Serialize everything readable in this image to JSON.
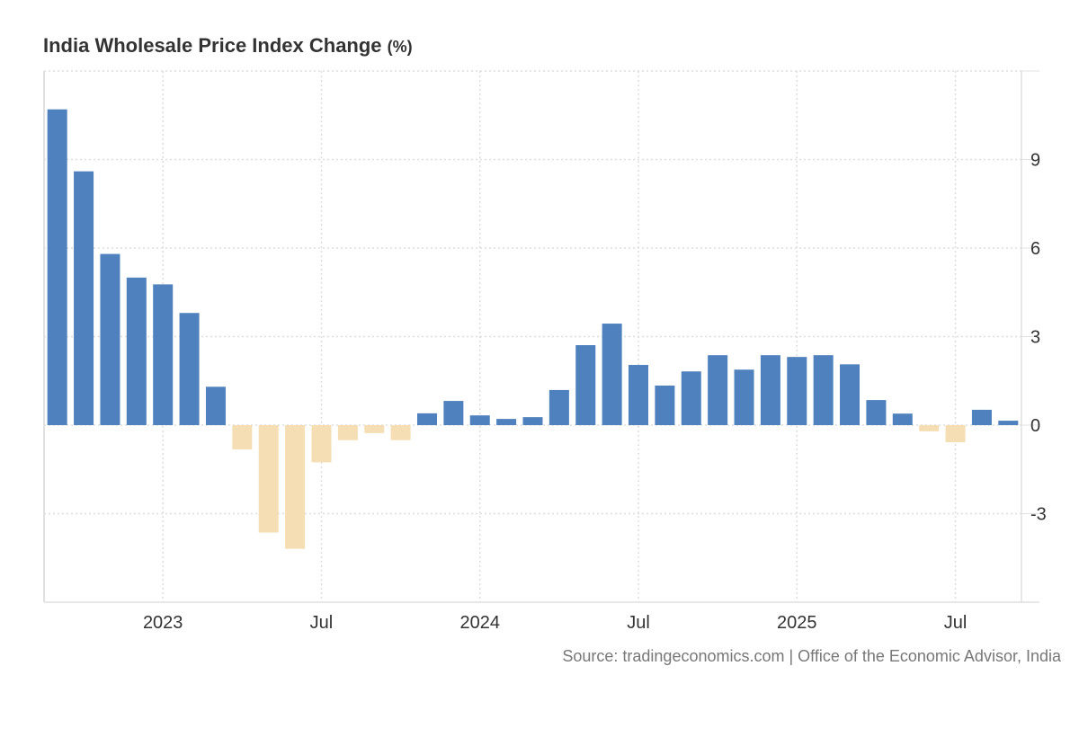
{
  "chart_data": {
    "type": "bar",
    "title": "India Wholesale Price Index Change",
    "title_unit": "(%)",
    "xlabel": "",
    "ylabel": "",
    "ylim": [
      -6,
      12
    ],
    "yticks": [
      -3,
      0,
      3,
      6,
      9
    ],
    "grid": true,
    "legend": "none",
    "y_axis_position": "right",
    "categories": [
      "2022-09",
      "2022-10",
      "2022-11",
      "2022-12",
      "2023-01",
      "2023-02",
      "2023-03",
      "2023-04",
      "2023-05",
      "2023-06",
      "2023-07",
      "2023-08",
      "2023-09",
      "2023-10",
      "2023-11",
      "2023-12",
      "2024-01",
      "2024-02",
      "2024-03",
      "2024-04",
      "2024-05",
      "2024-06",
      "2024-07",
      "2024-08",
      "2024-09",
      "2024-10",
      "2024-11",
      "2024-12",
      "2025-01",
      "2025-02",
      "2025-03",
      "2025-04",
      "2025-05",
      "2025-06",
      "2025-07",
      "2025-08",
      "2025-09"
    ],
    "values": [
      10.7,
      8.6,
      5.8,
      5.0,
      4.77,
      3.8,
      1.3,
      -0.82,
      -3.64,
      -4.19,
      -1.26,
      -0.51,
      -0.27,
      -0.51,
      0.4,
      0.82,
      0.33,
      0.21,
      0.27,
      1.19,
      2.71,
      3.44,
      2.04,
      1.34,
      1.82,
      2.37,
      1.88,
      2.37,
      2.31,
      2.37,
      2.06,
      0.85,
      0.39,
      -0.21,
      -0.58,
      0.52,
      0.15
    ],
    "xticks": [
      {
        "index": 4,
        "label": "2023"
      },
      {
        "index": 10,
        "label": "Jul"
      },
      {
        "index": 16,
        "label": "2024"
      },
      {
        "index": 22,
        "label": "Jul"
      },
      {
        "index": 28,
        "label": "2025"
      },
      {
        "index": 34,
        "label": "Jul"
      }
    ],
    "colors": {
      "positive": "#4e81bd",
      "negative": "#f5deb3"
    }
  },
  "source": "Source: tradingeconomics.com | Office of the Economic Advisor, India"
}
